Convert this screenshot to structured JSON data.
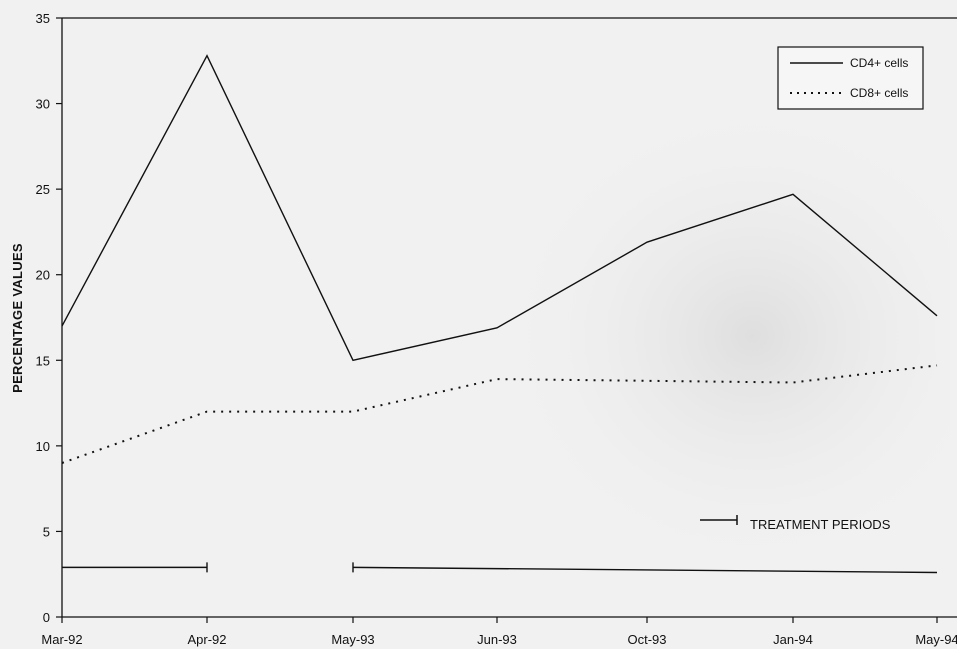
{
  "chart_data": {
    "type": "line",
    "title": "",
    "xlabel": "",
    "ylabel": "PERCENTAGE VALUES",
    "ylim": [
      0,
      35
    ],
    "yticks": [
      0,
      5,
      10,
      15,
      20,
      25,
      30,
      35
    ],
    "categories": [
      "Mar-92",
      "Apr-92",
      "May-93",
      "Jun-93",
      "Oct-93",
      "Jan-94",
      "May-94"
    ],
    "series": [
      {
        "name": "CD4+ cells",
        "style": "solid",
        "color": "#111111",
        "values": [
          17,
          32.8,
          15,
          16.9,
          21.9,
          24.7,
          17.6
        ]
      },
      {
        "name": "CD8+ cells",
        "style": "dotted",
        "color": "#111111",
        "values": [
          9,
          12,
          12,
          13.9,
          13.8,
          13.7,
          14.7
        ]
      }
    ],
    "treatment": {
      "label": "TREATMENT PERIODS",
      "periods": [
        {
          "from": "Mar-92",
          "to": "Apr-92",
          "level": 2.9
        },
        {
          "from": "May-93",
          "to": "May-94",
          "level": 2.9,
          "level_end": 2.6
        }
      ]
    },
    "legend": {
      "position": "top-right"
    },
    "grid": false
  }
}
